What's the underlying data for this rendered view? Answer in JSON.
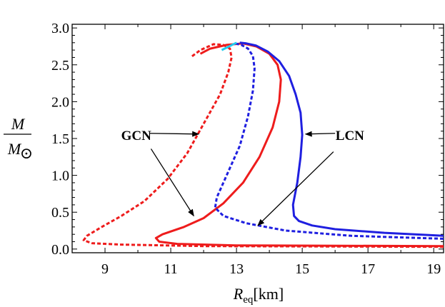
{
  "chart_data": {
    "type": "line",
    "title": "",
    "xlabel": "R",
    "xlabel_sub": "eq",
    "xlabel_unit": "[km]",
    "ylabel_num": "M",
    "ylabel_den": "M",
    "ylabel_den_symbol": "⊙",
    "xlim": [
      8,
      19.3
    ],
    "ylim": [
      -0.05,
      3.05
    ],
    "xticks": [
      9,
      11,
      13,
      15,
      17,
      19
    ],
    "xtick_labels": [
      "9",
      "11",
      "13",
      "15",
      "17",
      "19"
    ],
    "yticks": [
      0.0,
      0.5,
      1.0,
      1.5,
      2.0,
      2.5,
      3.0
    ],
    "ytick_labels": [
      "0.0",
      "0.5",
      "1.0",
      "1.5",
      "2.0",
      "2.5",
      "3.0"
    ],
    "grid": false,
    "legend": "none",
    "annotations": [
      {
        "text": "GCN",
        "x": 9.95,
        "y": 1.55
      },
      {
        "text": "LCN",
        "x": 16.45,
        "y": 1.55
      }
    ],
    "arrows": [
      {
        "from": [
          10.35,
          1.57
        ],
        "to": [
          11.85,
          1.56
        ]
      },
      {
        "from": [
          10.4,
          1.36
        ],
        "to": [
          11.7,
          0.45
        ]
      },
      {
        "from": [
          16.0,
          1.57
        ],
        "to": [
          15.1,
          1.56
        ]
      },
      {
        "from": [
          15.95,
          1.32
        ],
        "to": [
          13.65,
          0.32
        ]
      }
    ],
    "series": [
      {
        "color": "#ee1c1c",
        "dash": "5,3",
        "x": [
          19.3,
          12.0,
          9.5,
          8.6,
          8.35,
          8.45,
          8.9,
          9.5,
          10.2,
          10.9,
          11.5,
          12.0,
          12.5,
          12.75,
          12.85,
          12.8,
          12.6,
          12.3,
          11.9,
          11.6
        ],
        "y": [
          0.03,
          0.04,
          0.06,
          0.08,
          0.12,
          0.18,
          0.3,
          0.45,
          0.65,
          0.95,
          1.3,
          1.7,
          2.1,
          2.4,
          2.6,
          2.72,
          2.77,
          2.78,
          2.7,
          2.6
        ]
      },
      {
        "color": "#ee1c1c",
        "dash": "",
        "x": [
          19.3,
          13.0,
          11.2,
          10.65,
          10.55,
          10.75,
          11.4,
          12.0,
          12.6,
          13.2,
          13.7,
          14.1,
          14.3,
          14.35,
          14.25,
          14.0,
          13.6,
          13.2,
          12.7,
          12.2,
          11.9
        ],
        "y": [
          0.04,
          0.05,
          0.07,
          0.1,
          0.15,
          0.2,
          0.3,
          0.42,
          0.62,
          0.9,
          1.25,
          1.65,
          2.0,
          2.3,
          2.5,
          2.65,
          2.75,
          2.79,
          2.77,
          2.72,
          2.65
        ]
      },
      {
        "color": "#1f1fe0",
        "dash": "5,3",
        "x": [
          19.3,
          16.5,
          14.5,
          13.3,
          12.6,
          12.35,
          12.4,
          12.7,
          13.1,
          13.35,
          13.5,
          13.55,
          13.5,
          13.35,
          13.15,
          12.95
        ],
        "y": [
          0.14,
          0.18,
          0.25,
          0.35,
          0.45,
          0.56,
          0.7,
          1.0,
          1.4,
          1.8,
          2.15,
          2.45,
          2.62,
          2.72,
          2.77,
          2.79
        ]
      },
      {
        "color": "#1f1fe0",
        "dash": "",
        "x": [
          19.3,
          17.5,
          16.0,
          15.3,
          14.9,
          14.75,
          14.72,
          14.85,
          14.95,
          15.0,
          14.95,
          14.8,
          14.6,
          14.3,
          13.95,
          13.6,
          13.3,
          13.1
        ],
        "y": [
          0.18,
          0.22,
          0.27,
          0.32,
          0.38,
          0.45,
          0.6,
          0.9,
          1.25,
          1.55,
          1.85,
          2.1,
          2.35,
          2.55,
          2.68,
          2.76,
          2.79,
          2.8
        ]
      },
      {
        "color": "#22ccee",
        "dash": "",
        "x": [
          12.55,
          13.0
        ],
        "y": [
          2.7,
          2.8
        ]
      }
    ]
  }
}
